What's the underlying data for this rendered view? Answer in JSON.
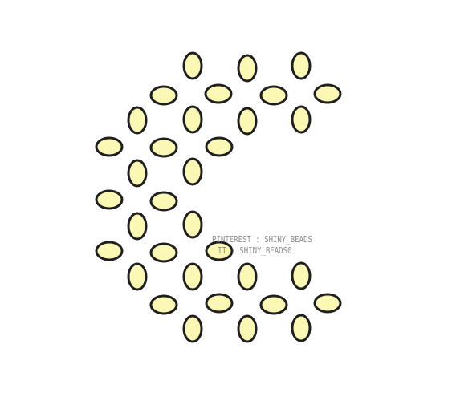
{
  "pattern": {
    "bead_fill": "#fbf7b4",
    "bead_stroke": "#1f1f1f",
    "background": "#ffffff"
  },
  "watermark": {
    "line1": "PINTEREST : SHINY_BEADS",
    "line2": "IT : SHINY_BEADS0"
  }
}
